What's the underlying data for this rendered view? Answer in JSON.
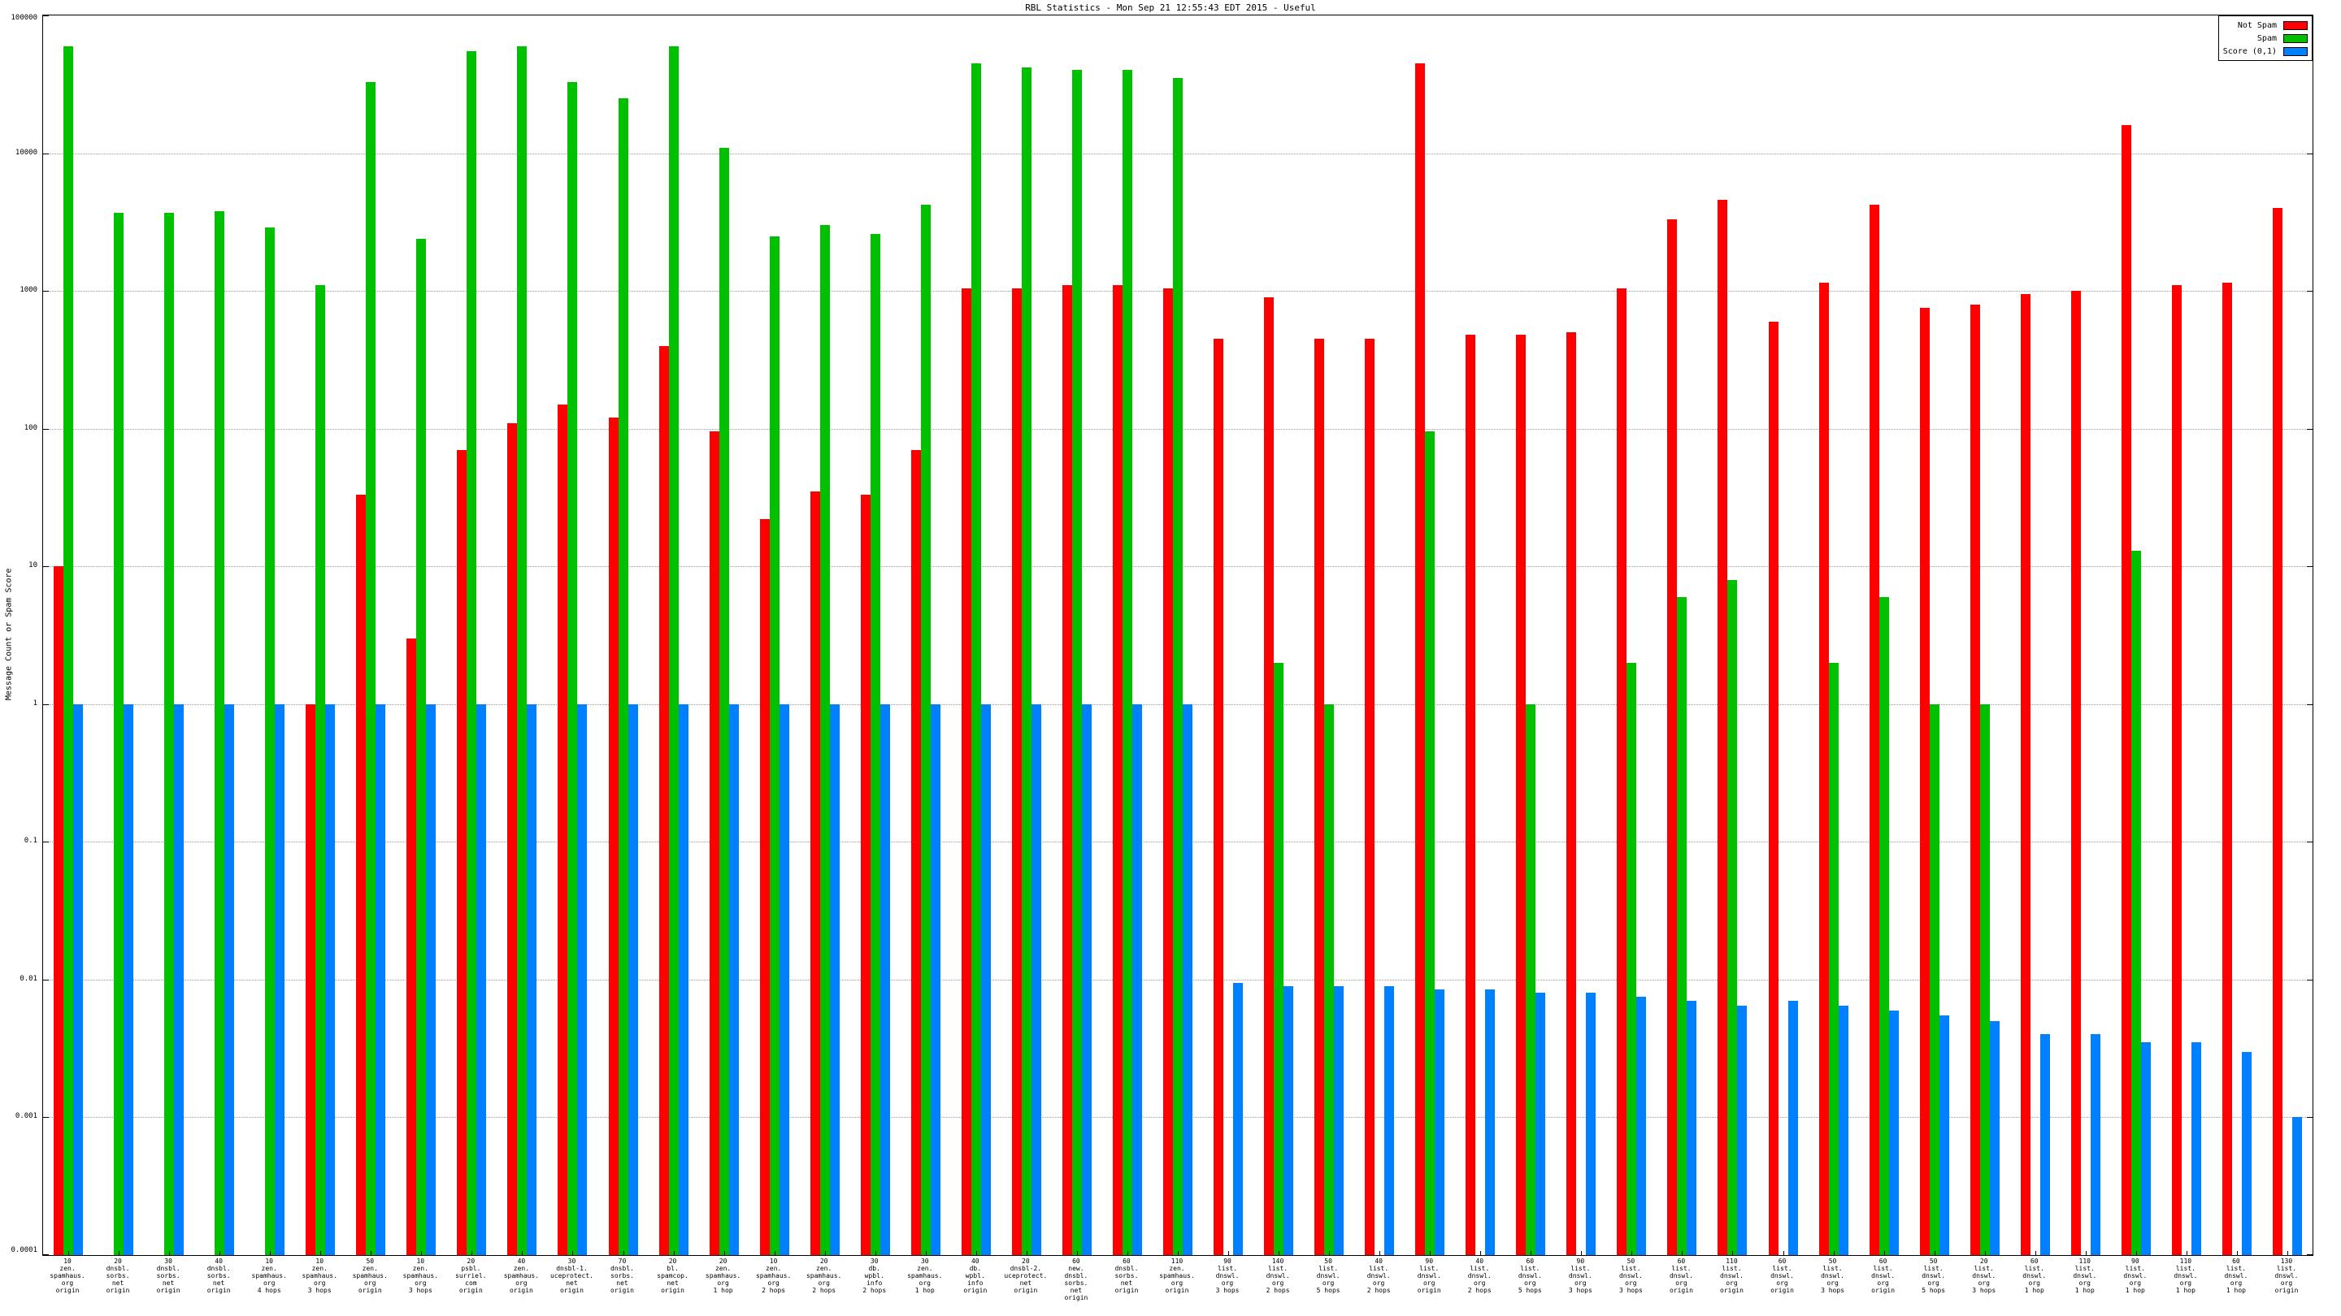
{
  "chart_data": {
    "type": "bar",
    "title": "RBL Statistics - Mon Sep 21 12:55:43 EDT 2015 - Useful",
    "ylabel": "Message Count or Spam Score",
    "xlabel": "",
    "y_scale": "log",
    "ylim": [
      0.0001,
      100000
    ],
    "y_ticks": [
      100000,
      10000,
      1000,
      100,
      10,
      1,
      0.1,
      0.01,
      0.001,
      0.0001
    ],
    "grid": "horizontal-dotted",
    "legend_position": "top-right",
    "series_meta": [
      {
        "name": "Not Spam",
        "key": "not_spam",
        "color": "#ff0000"
      },
      {
        "name": "Spam",
        "key": "spam",
        "color": "#00c000"
      },
      {
        "name": "Score (0,1)",
        "key": "score",
        "color": "#0080ff"
      }
    ],
    "groups": [
      {
        "label": [
          "10",
          "zen.",
          "spamhaus.",
          "org",
          "origin"
        ],
        "not_spam": 10,
        "spam": 60000,
        "score": 1
      },
      {
        "label": [
          "20",
          "dnsbl.",
          "sorbs.",
          "net",
          "origin"
        ],
        "not_spam": null,
        "spam": 3700,
        "score": 1
      },
      {
        "label": [
          "30",
          "dnsbl.",
          "sorbs.",
          "net",
          "origin"
        ],
        "not_spam": null,
        "spam": 3700,
        "score": 1
      },
      {
        "label": [
          "40",
          "dnsbl.",
          "sorbs.",
          "net",
          "origin"
        ],
        "not_spam": null,
        "spam": 3800,
        "score": 1
      },
      {
        "label": [
          "10",
          "zen.",
          "spamhaus.",
          "org",
          "4 hops"
        ],
        "not_spam": null,
        "spam": 2900,
        "score": 1
      },
      {
        "label": [
          "10",
          "zen.",
          "spamhaus.",
          "org",
          "3 hops"
        ],
        "not_spam": 1,
        "spam": 1100,
        "score": 1
      },
      {
        "label": [
          "50",
          "zen.",
          "spamhaus.",
          "org",
          "origin"
        ],
        "not_spam": 33,
        "spam": 33000,
        "score": 1
      },
      {
        "label": [
          "10",
          "zen.",
          "spamhaus.",
          "org",
          "3 hops"
        ],
        "not_spam": 3,
        "spam": 2400,
        "score": 1
      },
      {
        "label": [
          "20",
          "psbl.",
          "surriel.",
          "com",
          "origin"
        ],
        "not_spam": 70,
        "spam": 55000,
        "score": 1
      },
      {
        "label": [
          "40",
          "zen.",
          "spamhaus.",
          "org",
          "origin"
        ],
        "not_spam": 110,
        "spam": 60000,
        "score": 1
      },
      {
        "label": [
          "30",
          "dnsbl-1.",
          "uceprotect.",
          "net",
          "origin"
        ],
        "not_spam": 150,
        "spam": 33000,
        "score": 1
      },
      {
        "label": [
          "70",
          "dnsbl.",
          "sorbs.",
          "net",
          "origin"
        ],
        "not_spam": 120,
        "spam": 25000,
        "score": 1
      },
      {
        "label": [
          "20",
          "bl.",
          "spamcop.",
          "net",
          "origin"
        ],
        "not_spam": 400,
        "spam": 60000,
        "score": 1
      },
      {
        "label": [
          "20",
          "zen.",
          "spamhaus.",
          "org",
          "1 hop"
        ],
        "not_spam": 95,
        "spam": 11000,
        "score": 1
      },
      {
        "label": [
          "10",
          "zen.",
          "spamhaus.",
          "org",
          "2 hops"
        ],
        "not_spam": 22,
        "spam": 2500,
        "score": 1
      },
      {
        "label": [
          "20",
          "zen.",
          "spamhaus.",
          "org",
          "2 hops"
        ],
        "not_spam": 35,
        "spam": 3000,
        "score": 1
      },
      {
        "label": [
          "30",
          "db.",
          "wpbl.",
          "info",
          "2 hops"
        ],
        "not_spam": 33,
        "spam": 2600,
        "score": 1
      },
      {
        "label": [
          "30",
          "zen.",
          "spamhaus.",
          "org",
          "1 hop"
        ],
        "not_spam": 70,
        "spam": 4200,
        "score": 1
      },
      {
        "label": [
          "40",
          "db.",
          "wpbl.",
          "info",
          "origin"
        ],
        "not_spam": 1050,
        "spam": 45000,
        "score": 1
      },
      {
        "label": [
          "20",
          "dnsbl-2.",
          "uceprotect.",
          "net",
          "origin"
        ],
        "not_spam": 1050,
        "spam": 42000,
        "score": 1
      },
      {
        "label": [
          "60",
          "new.",
          "dnsbl.",
          "sorbs.",
          "net",
          "origin"
        ],
        "not_spam": 1100,
        "spam": 40000,
        "score": 1
      },
      {
        "label": [
          "60",
          "dnsbl.",
          "sorbs.",
          "net",
          "origin"
        ],
        "not_spam": 1100,
        "spam": 40000,
        "score": 1
      },
      {
        "label": [
          "110",
          "zen.",
          "spamhaus.",
          "org",
          "origin"
        ],
        "not_spam": 1050,
        "spam": 35000,
        "score": 1
      },
      {
        "label": [
          "90",
          "list.",
          "dnswl.",
          "org",
          "3 hops"
        ],
        "not_spam": 450,
        "spam": null,
        "score": 0.0095
      },
      {
        "label": [
          "140",
          "list.",
          "dnswl.",
          "org",
          "2 hops"
        ],
        "not_spam": 900,
        "spam": 2,
        "score": 0.009
      },
      {
        "label": [
          "50",
          "list.",
          "dnswl.",
          "org",
          "5 hops"
        ],
        "not_spam": 450,
        "spam": 1,
        "score": 0.009
      },
      {
        "label": [
          "40",
          "list.",
          "dnswl.",
          "org",
          "2 hops"
        ],
        "not_spam": 450,
        "spam": null,
        "score": 0.009
      },
      {
        "label": [
          "90",
          "list.",
          "dnswl.",
          "org",
          "origin"
        ],
        "not_spam": 45000,
        "spam": 95,
        "score": 0.0085
      },
      {
        "label": [
          "40",
          "list.",
          "dnswl.",
          "org",
          "2 hops"
        ],
        "not_spam": 480,
        "spam": null,
        "score": 0.0085
      },
      {
        "label": [
          "60",
          "list.",
          "dnswl.",
          "org",
          "5 hops"
        ],
        "not_spam": 480,
        "spam": 1,
        "score": 0.008
      },
      {
        "label": [
          "90",
          "list.",
          "dnswl.",
          "org",
          "3 hops"
        ],
        "not_spam": 500,
        "spam": null,
        "score": 0.008
      },
      {
        "label": [
          "50",
          "list.",
          "dnswl.",
          "org",
          "3 hops"
        ],
        "not_spam": 1050,
        "spam": 2,
        "score": 0.0075
      },
      {
        "label": [
          "60",
          "list.",
          "dnswl.",
          "org",
          "origin"
        ],
        "not_spam": 3300,
        "spam": 6,
        "score": 0.007
      },
      {
        "label": [
          "110",
          "list.",
          "dnswl.",
          "org",
          "origin"
        ],
        "not_spam": 4600,
        "spam": 8,
        "score": 0.0065
      },
      {
        "label": [
          "60",
          "list.",
          "dnswl.",
          "org",
          "origin"
        ],
        "not_spam": 600,
        "spam": null,
        "score": 0.007
      },
      {
        "label": [
          "50",
          "list.",
          "dnswl.",
          "org",
          "3 hops"
        ],
        "not_spam": 1150,
        "spam": 2,
        "score": 0.0065
      },
      {
        "label": [
          "60",
          "list.",
          "dnswl.",
          "org",
          "origin"
        ],
        "not_spam": 4200,
        "spam": 6,
        "score": 0.006
      },
      {
        "label": [
          "50",
          "list.",
          "dnswl.",
          "org",
          "5 hops"
        ],
        "not_spam": 750,
        "spam": 1,
        "score": 0.0055
      },
      {
        "label": [
          "20",
          "list.",
          "dnswl.",
          "org",
          "3 hops"
        ],
        "not_spam": 800,
        "spam": 1,
        "score": 0.005
      },
      {
        "label": [
          "60",
          "list.",
          "dnswl.",
          "org",
          "1 hop"
        ],
        "not_spam": 950,
        "spam": null,
        "score": 0.004
      },
      {
        "label": [
          "110",
          "list.",
          "dnswl.",
          "org",
          "1 hop"
        ],
        "not_spam": 1000,
        "spam": null,
        "score": 0.004
      },
      {
        "label": [
          "90",
          "list.",
          "dnswl.",
          "org",
          "1 hop"
        ],
        "not_spam": 16000,
        "spam": 13,
        "score": 0.0035
      },
      {
        "label": [
          "110",
          "list.",
          "dnswl.",
          "org",
          "1 hop"
        ],
        "not_spam": 1100,
        "spam": null,
        "score": 0.0035
      },
      {
        "label": [
          "60",
          "list.",
          "dnswl.",
          "org",
          "1 hop"
        ],
        "not_spam": 1150,
        "spam": null,
        "score": 0.003
      },
      {
        "label": [
          "130",
          "list.",
          "dnswl.",
          "org",
          "origin"
        ],
        "not_spam": 4000,
        "spam": null,
        "score": 0.001
      }
    ]
  }
}
